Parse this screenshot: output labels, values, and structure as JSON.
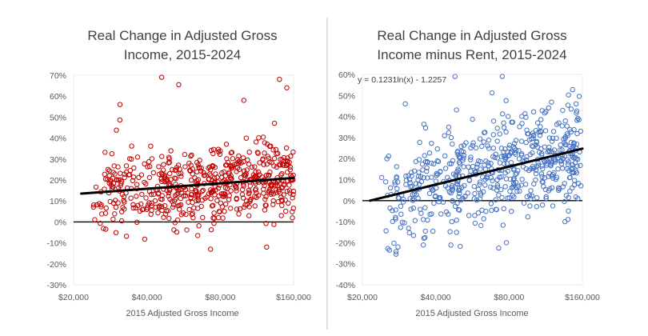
{
  "chart_data": [
    {
      "type": "scatter",
      "title_lines": [
        "Real Change in Adjusted Gross",
        "Income, 2015-2024"
      ],
      "xlabel": "2015 Adjusted Gross Income",
      "ylabel": "",
      "x_scale": "log",
      "xlim": [
        20000,
        160000
      ],
      "ylim": [
        -0.3,
        0.7
      ],
      "x_ticks": [
        20000,
        40000,
        80000,
        160000
      ],
      "x_tick_labels": [
        "$20,000",
        "$40,000",
        "$80,000",
        "$160,000"
      ],
      "y_ticks": [
        -0.3,
        -0.2,
        -0.1,
        0.0,
        0.1,
        0.2,
        0.3,
        0.4,
        0.5,
        0.6,
        0.7
      ],
      "y_tick_labels": [
        "-30%",
        "-20%",
        "-10%",
        "0%",
        "10%",
        "20%",
        "30%",
        "40%",
        "50%",
        "60%",
        "70%"
      ],
      "grid": false,
      "legend": "none",
      "marker_color": "#c00000",
      "marker_style": "open-circle",
      "trendline": {
        "kind": "log",
        "start": [
          21500,
          0.135
        ],
        "end": [
          160000,
          0.21
        ],
        "color": "#000000",
        "equation_label": ""
      },
      "zero_line": true,
      "approx_points": 600,
      "notable_points": [
        {
          "x": 46000,
          "y": 0.69
        },
        {
          "x": 140000,
          "y": 0.68
        },
        {
          "x": 150000,
          "y": 0.64
        },
        {
          "x": 54000,
          "y": 0.655
        },
        {
          "x": 31000,
          "y": 0.56
        },
        {
          "x": 100000,
          "y": 0.58
        },
        {
          "x": 73000,
          "y": -0.13
        },
        {
          "x": 124000,
          "y": -0.12
        }
      ]
    },
    {
      "type": "scatter",
      "title_lines": [
        "Real Change in Adjusted Gross",
        "Income minus Rent, 2015-2024"
      ],
      "xlabel": "2015 Adjusted Gross Income",
      "ylabel": "",
      "x_scale": "log",
      "xlim": [
        20000,
        160000
      ],
      "ylim": [
        -0.4,
        0.6
      ],
      "x_ticks": [
        20000,
        40000,
        80000,
        160000
      ],
      "x_tick_labels": [
        "$20,000",
        "$40,000",
        "$80,000",
        "$160,000"
      ],
      "y_ticks": [
        -0.4,
        -0.3,
        -0.2,
        -0.1,
        0.0,
        0.1,
        0.2,
        0.3,
        0.4,
        0.5,
        0.6
      ],
      "y_tick_labels": [
        "-40%",
        "-30%",
        "-20%",
        "-10%",
        "0%",
        "10%",
        "20%",
        "30%",
        "40%",
        "50%",
        "60%"
      ],
      "grid": false,
      "legend": "none",
      "marker_color": "#4472c4",
      "marker_style": "open-circle",
      "trendline": {
        "kind": "log",
        "start": [
          21500,
          0.0
        ],
        "end": [
          160000,
          0.247
        ],
        "color": "#000000",
        "equation_label": "y = 0.1231ln(x) - 1.2257"
      },
      "zero_line": true,
      "approx_points": 600,
      "notable_points": [
        {
          "x": 48000,
          "y": 0.59
        },
        {
          "x": 75000,
          "y": 0.59
        },
        {
          "x": 30000,
          "y": 0.46
        },
        {
          "x": 24000,
          "y": 0.11
        },
        {
          "x": 28000,
          "y": -0.22
        },
        {
          "x": 78000,
          "y": -0.2
        }
      ]
    }
  ]
}
